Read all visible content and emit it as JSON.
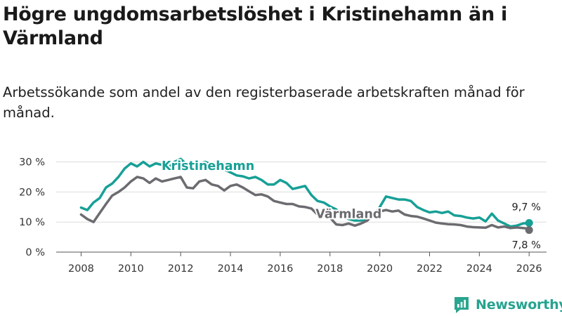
{
  "header": {
    "title": "Högre ungdomsarbetslöshet i Kristinehamn än i Värmland",
    "subtitle": "Arbetssökande som andel av den registerbaserade arbetskraften månad för månad."
  },
  "brand": {
    "name": "Newsworthy",
    "icon": "newsworthy-logo-icon",
    "color": "#2aa58f"
  },
  "chart_data": {
    "type": "line",
    "title": "Högre ungdomsarbetslöshet i Kristinehamn än i Värmland",
    "xlabel": "",
    "ylabel": "",
    "xlim": [
      2007,
      2026.7
    ],
    "ylim": [
      0,
      32
    ],
    "x_ticks": [
      2008,
      2010,
      2012,
      2014,
      2016,
      2018,
      2020,
      2022,
      2024,
      2026
    ],
    "x_tick_labels": [
      "2008",
      "2010",
      "2012",
      "2014",
      "2016",
      "2018",
      "2020",
      "2022",
      "2024",
      "2026"
    ],
    "y_ticks": [
      0,
      10,
      20,
      30
    ],
    "y_tick_labels": [
      "0 %",
      "10 %",
      "20 %",
      "30 %"
    ],
    "grid": true,
    "series": [
      {
        "name": "Kristinehamn",
        "color": "#17a096",
        "label_at": [
          2013.1,
          27.3
        ],
        "end_label": "9,7 %",
        "x": [
          2008.0,
          2008.25,
          2008.5,
          2008.75,
          2009.0,
          2009.25,
          2009.5,
          2009.75,
          2010.0,
          2010.25,
          2010.5,
          2010.75,
          2011.0,
          2011.25,
          2011.5,
          2011.75,
          2012.0,
          2012.25,
          2012.5,
          2012.75,
          2013.0,
          2013.25,
          2013.5,
          2013.75,
          2014.0,
          2014.25,
          2014.5,
          2014.75,
          2015.0,
          2015.25,
          2015.5,
          2015.75,
          2016.0,
          2016.25,
          2016.5,
          2016.75,
          2017.0,
          2017.25,
          2017.5,
          2017.75,
          2018.0,
          2018.25,
          2018.5,
          2018.75,
          2019.0,
          2019.25,
          2019.5,
          2019.75,
          2020.0,
          2020.25,
          2020.5,
          2020.75,
          2021.0,
          2021.25,
          2021.5,
          2021.75,
          2022.0,
          2022.25,
          2022.5,
          2022.75,
          2023.0,
          2023.25,
          2023.5,
          2023.75,
          2024.0,
          2024.25,
          2024.5,
          2024.75,
          2025.0,
          2025.25,
          2025.5,
          2025.75,
          2026.0
        ],
        "values": [
          14.8,
          14,
          16.5,
          18,
          21.5,
          22.8,
          25,
          27.8,
          29.5,
          28.5,
          30,
          28.5,
          29.5,
          29,
          28,
          30,
          31,
          29,
          29.5,
          29.5,
          30,
          29,
          28,
          27.5,
          26.5,
          25.5,
          25.2,
          24.5,
          25,
          24,
          22.5,
          22.5,
          24,
          23,
          21,
          21.5,
          22,
          19,
          17,
          16.5,
          15.2,
          14.2,
          12,
          11,
          10.5,
          10.5,
          11,
          12,
          15,
          18.5,
          18,
          17.5,
          17.5,
          17,
          15,
          14,
          13.2,
          13.5,
          13,
          13.5,
          12.2,
          12,
          11.5,
          11.2,
          11.5,
          10.2,
          12.8,
          10.5,
          9.5,
          8.5,
          8.8,
          9.5,
          9.7
        ]
      },
      {
        "name": "Värmland",
        "color": "#6b6b70",
        "label_at": [
          2018.75,
          11.3
        ],
        "end_label": "7,8 %",
        "x": [
          2008.0,
          2008.25,
          2008.5,
          2008.75,
          2009.0,
          2009.25,
          2009.5,
          2009.75,
          2010.0,
          2010.25,
          2010.5,
          2010.75,
          2011.0,
          2011.25,
          2011.5,
          2011.75,
          2012.0,
          2012.25,
          2012.5,
          2012.75,
          2013.0,
          2013.25,
          2013.5,
          2013.75,
          2014.0,
          2014.25,
          2014.5,
          2014.75,
          2015.0,
          2015.25,
          2015.5,
          2015.75,
          2016.0,
          2016.25,
          2016.5,
          2016.75,
          2017.0,
          2017.25,
          2017.5,
          2017.75,
          2018.0,
          2018.25,
          2018.5,
          2018.75,
          2019.0,
          2019.25,
          2019.5,
          2019.75,
          2020.0,
          2020.25,
          2020.5,
          2020.75,
          2021.0,
          2021.25,
          2021.5,
          2021.75,
          2022.0,
          2022.25,
          2022.5,
          2022.75,
          2023.0,
          2023.25,
          2023.5,
          2023.75,
          2024.0,
          2024.25,
          2024.5,
          2024.75,
          2025.0,
          2025.25,
          2025.5,
          2025.75,
          2026.0
        ],
        "values": [
          12.5,
          11,
          10,
          13,
          16,
          18.8,
          20,
          21.5,
          23.5,
          25,
          24.5,
          23,
          24.5,
          23.5,
          24,
          24.5,
          25,
          21.5,
          21.2,
          23.5,
          24,
          22.5,
          22,
          20.5,
          22,
          22.5,
          21.5,
          20.2,
          19,
          19.2,
          18.5,
          17,
          16.5,
          16,
          16,
          15.2,
          15,
          14.5,
          12.5,
          12.2,
          11.5,
          9.2,
          9,
          9.5,
          8.8,
          9.5,
          10.5,
          12.5,
          13.5,
          14,
          13.5,
          13.8,
          12.5,
          12,
          11.8,
          11.2,
          10.5,
          9.8,
          9.5,
          9.3,
          9.2,
          9,
          8.5,
          8.3,
          8.2,
          8.1,
          9,
          8.2,
          8.5,
          8,
          8.2,
          8,
          7.8
        ]
      }
    ]
  }
}
